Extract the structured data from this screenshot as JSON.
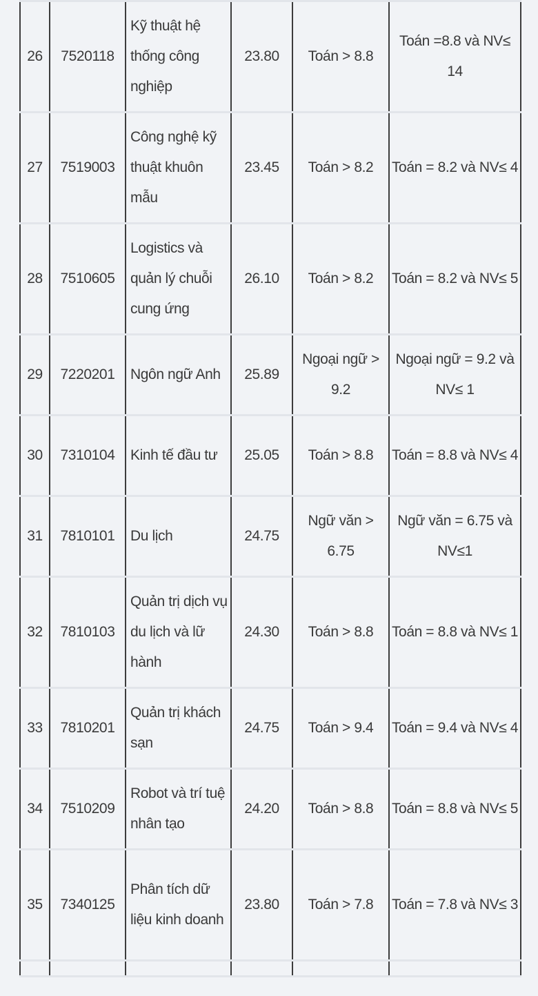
{
  "rows": [
    {
      "stt": "26",
      "code": "7520118",
      "name": "Kỹ thuật hệ thống công nghiệp",
      "score": "23.80",
      "criteria1": "Toán > 8.8",
      "criteria2": "Toán =8.8 và NV≤ 14"
    },
    {
      "stt": "27",
      "code": "7519003",
      "name": "Công nghệ kỹ thuật khuôn mẫu",
      "score": "23.45",
      "criteria1": "Toán > 8.2",
      "criteria2": "Toán = 8.2 và NV≤ 4"
    },
    {
      "stt": "28",
      "code": "7510605",
      "name": "Logistics và quản lý chuỗi cung ứng",
      "score": "26.10",
      "criteria1": "Toán > 8.2",
      "criteria2": "Toán = 8.2 và NV≤ 5"
    },
    {
      "stt": "29",
      "code": "7220201",
      "name": "Ngôn ngữ Anh",
      "score": "25.89",
      "criteria1": "Ngoại ngữ > 9.2",
      "criteria2": "Ngoại ngữ = 9.2 và NV≤ 1"
    },
    {
      "stt": "30",
      "code": "7310104",
      "name": "Kinh tế đầu tư",
      "score": "25.05",
      "criteria1": "Toán > 8.8",
      "criteria2": "Toán = 8.8 và NV≤ 4"
    },
    {
      "stt": "31",
      "code": "7810101",
      "name": "Du lịch",
      "score": "24.75",
      "criteria1": "Ngữ văn > 6.75",
      "criteria2": "Ngữ văn = 6.75 và NV≤1"
    },
    {
      "stt": "32",
      "code": "7810103",
      "name": "Quản trị dịch vụ du lịch và lữ hành",
      "score": "24.30",
      "criteria1": "Toán > 8.8",
      "criteria2": "Toán = 8.8 và NV≤ 1"
    },
    {
      "stt": "33",
      "code": "7810201",
      "name": "Quản trị khách sạn",
      "score": "24.75",
      "criteria1": "Toán > 9.4",
      "criteria2": "Toán = 9.4 và NV≤ 4"
    },
    {
      "stt": "34",
      "code": "7510209",
      "name": "Robot và trí tuệ nhân tạo",
      "score": "24.20",
      "criteria1": "Toán > 8.8",
      "criteria2": "Toán = 8.8 và NV≤ 5"
    },
    {
      "stt": "35",
      "code": "7340125",
      "name": "Phân tích dữ liệu kinh doanh",
      "score": "23.80",
      "criteria1": "Toán > 7.8",
      "criteria2": "Toán = 7.8 và NV≤ 3"
    }
  ]
}
